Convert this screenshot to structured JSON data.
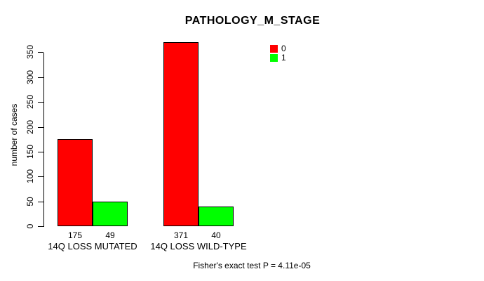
{
  "chart_data": {
    "type": "bar",
    "title": "PATHOLOGY_M_STAGE",
    "xlabel": "",
    "ylabel": "number of cases",
    "categories": [
      "14Q LOSS MUTATED",
      "14Q LOSS WILD-TYPE"
    ],
    "series": [
      {
        "name": "0",
        "color": "#FF0000",
        "values": [
          175,
          371
        ]
      },
      {
        "name": "1",
        "color": "#00FF00",
        "values": [
          49,
          40
        ]
      }
    ],
    "bar_value_labels": [
      [
        "175",
        "49"
      ],
      [
        "371",
        "40"
      ]
    ],
    "yticks": [
      0,
      50,
      100,
      150,
      200,
      250,
      300,
      350
    ],
    "ylim": [
      0,
      371
    ],
    "grid": false,
    "legend_position": "top-right",
    "legend": [
      {
        "label": "0",
        "color": "#FF0000"
      },
      {
        "label": "1",
        "color": "#00FF00"
      }
    ],
    "annotation": "Fisher's exact test P = 4.11e-05",
    "axis_color": "#000000",
    "bar_border_color": "#000000"
  }
}
